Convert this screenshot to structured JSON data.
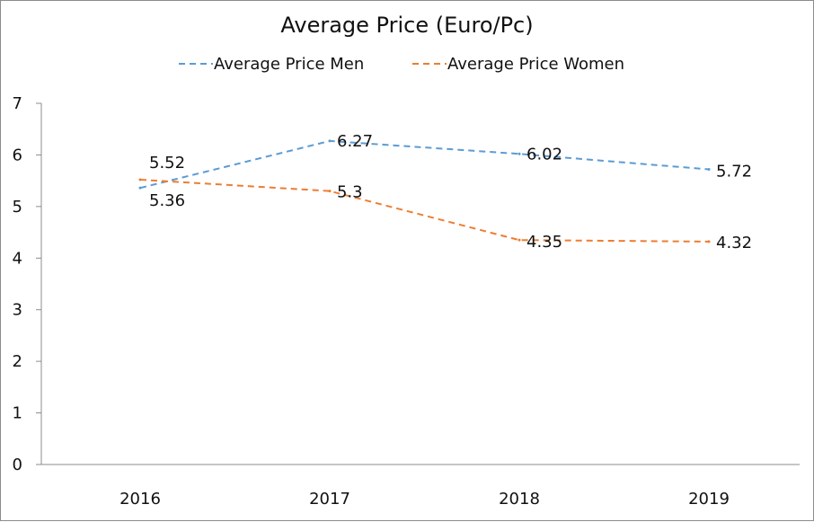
{
  "chart_data": {
    "type": "line",
    "title": "Average Price (Euro/Pc)",
    "xlabel": "",
    "ylabel": "",
    "categories": [
      "2016",
      "2017",
      "2018",
      "2019"
    ],
    "ylim": [
      0,
      7
    ],
    "yticks": [
      "0",
      "1",
      "2",
      "3",
      "4",
      "5",
      "6",
      "7"
    ],
    "grid": false,
    "legend_position": "top",
    "series": [
      {
        "name": "Average Price Men",
        "values": [
          5.36,
          6.27,
          6.02,
          5.72
        ],
        "labels": [
          "5.36",
          "6.27",
          "6.02",
          "5.72"
        ],
        "color": "#5b9bd5",
        "line_style": "dashed"
      },
      {
        "name": "Average Price Women",
        "values": [
          5.52,
          5.3,
          4.35,
          4.32
        ],
        "labels": [
          "5.52",
          "5.3",
          "4.35",
          "4.32"
        ],
        "color": "#ed7d31",
        "line_style": "dashed"
      }
    ]
  }
}
